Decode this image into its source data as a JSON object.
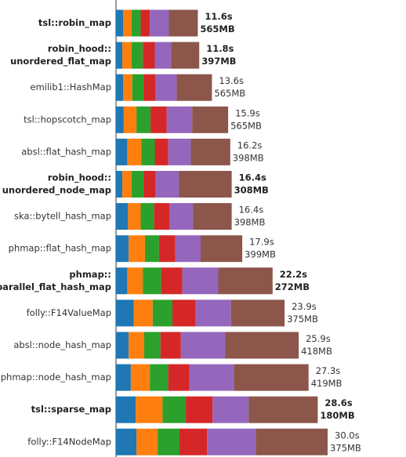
{
  "chart_data": {
    "type": "stacked-bar-horizontal",
    "categories": [
      [
        "tsl::robin_map"
      ],
      [
        "robin_hood::",
        "unordered_flat_map"
      ],
      [
        "emilib1::HashMap"
      ],
      [
        "tsl::hopscotch_map"
      ],
      [
        "absl::flat_hash_map"
      ],
      [
        "robin_hood::",
        "unordered_node_map"
      ],
      [
        "ska::bytell_hash_map"
      ],
      [
        "phmap::flat_hash_map"
      ],
      [
        "phmap::",
        "parallel_flat_hash_map"
      ],
      [
        "folly::F14ValueMap"
      ],
      [
        "absl::node_hash_map"
      ],
      [
        "phmap::node_hash_map"
      ],
      [
        "tsl::sparse_map"
      ],
      [
        "folly::F14NodeMap"
      ]
    ],
    "highlight": [
      true,
      true,
      false,
      false,
      false,
      true,
      false,
      false,
      true,
      false,
      false,
      false,
      true,
      false
    ],
    "series": [
      {
        "color": "#1f77b4",
        "values": [
          1.0,
          0.9,
          1.0,
          1.1,
          1.6,
          0.9,
          1.7,
          1.8,
          1.6,
          2.5,
          1.8,
          2.1,
          2.8,
          2.9
        ]
      },
      {
        "color": "#ff7f0e",
        "values": [
          1.2,
          1.3,
          1.3,
          1.8,
          2.0,
          1.3,
          1.8,
          2.3,
          2.2,
          2.7,
          2.2,
          2.7,
          3.8,
          3.0
        ]
      },
      {
        "color": "#2ca02c",
        "values": [
          1.3,
          1.6,
          1.6,
          2.0,
          1.9,
          1.7,
          1.9,
          2.0,
          2.6,
          2.8,
          2.3,
          2.6,
          3.3,
          3.1
        ]
      },
      {
        "color": "#d62728",
        "values": [
          1.3,
          1.7,
          1.7,
          2.3,
          1.9,
          1.7,
          2.2,
          2.3,
          3.0,
          3.3,
          2.9,
          3.0,
          3.8,
          3.9
        ]
      },
      {
        "color": "#9467bd",
        "values": [
          2.7,
          2.3,
          3.0,
          3.6,
          3.2,
          3.3,
          3.3,
          3.6,
          5.1,
          5.0,
          6.3,
          6.3,
          5.1,
          6.9
        ]
      },
      {
        "color": "#8c564b",
        "values": [
          4.1,
          4.0,
          5.0,
          5.1,
          5.6,
          7.5,
          5.5,
          5.9,
          7.7,
          7.6,
          10.4,
          10.6,
          9.8,
          10.2
        ]
      }
    ],
    "time_labels": [
      "11.6s",
      "11.8s",
      "13.6s",
      "15.9s",
      "16.2s",
      "16.4s",
      "16.4s",
      "17.9s",
      "22.2s",
      "23.9s",
      "25.9s",
      "27.3s",
      "28.6s",
      "30.0s"
    ],
    "memory_labels": [
      "565MB",
      "397MB",
      "565MB",
      "565MB",
      "398MB",
      "308MB",
      "398MB",
      "399MB",
      "272MB",
      "375MB",
      "418MB",
      "419MB",
      "180MB",
      "375MB"
    ],
    "xlim": [
      0,
      41
    ]
  }
}
